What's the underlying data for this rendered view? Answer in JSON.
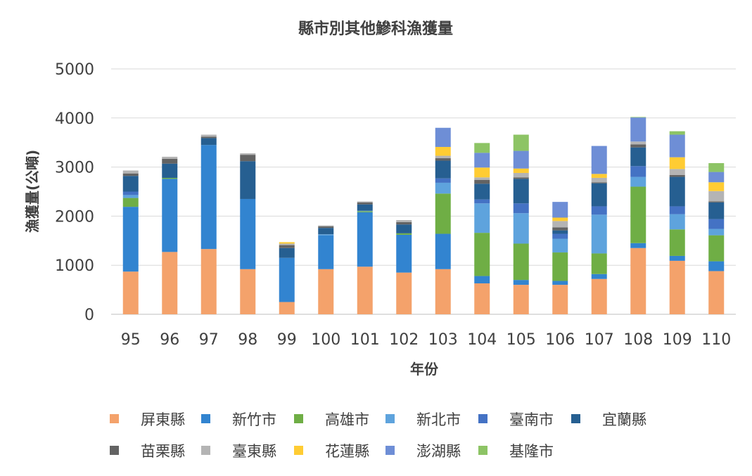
{
  "chart_data": {
    "type": "bar",
    "stacked": true,
    "title": "縣市別其他鰺科漁獲量",
    "xlabel": "年份",
    "ylabel": "漁獲量(公噸)",
    "ylim": [
      0,
      5000
    ],
    "yticks": [
      0,
      1000,
      2000,
      3000,
      4000,
      5000
    ],
    "grid": true,
    "legend_position": "bottom",
    "categories": [
      "95",
      "96",
      "97",
      "98",
      "99",
      "100",
      "101",
      "102",
      "103",
      "104",
      "105",
      "106",
      "107",
      "108",
      "109",
      "110"
    ],
    "series": [
      {
        "name": "屏東縣",
        "color": "#F4A26B",
        "values": [
          870,
          1270,
          1330,
          920,
          250,
          920,
          970,
          850,
          920,
          630,
          600,
          600,
          720,
          1350,
          1090,
          880
        ]
      },
      {
        "name": "新竹市",
        "color": "#3284D0",
        "values": [
          1320,
          1490,
          2120,
          1430,
          900,
          690,
          1110,
          770,
          720,
          150,
          100,
          80,
          100,
          100,
          100,
          200
        ]
      },
      {
        "name": "高雄市",
        "color": "#6FAE45",
        "values": [
          180,
          20,
          0,
          0,
          0,
          0,
          20,
          30,
          820,
          880,
          740,
          580,
          420,
          1150,
          540,
          530
        ]
      },
      {
        "name": "新北市",
        "color": "#5EA3DD",
        "values": [
          60,
          0,
          0,
          0,
          0,
          20,
          10,
          0,
          220,
          600,
          620,
          280,
          790,
          200,
          310,
          130
        ]
      },
      {
        "name": "臺南市",
        "color": "#4472C4",
        "values": [
          70,
          0,
          0,
          0,
          0,
          0,
          0,
          0,
          90,
          80,
          200,
          100,
          170,
          220,
          160,
          200
        ]
      },
      {
        "name": "宜蘭縣",
        "color": "#265F91",
        "values": [
          320,
          290,
          140,
          770,
          200,
          130,
          130,
          180,
          360,
          320,
          500,
          70,
          470,
          380,
          600,
          340
        ]
      },
      {
        "name": "苗栗縣",
        "color": "#636363",
        "values": [
          50,
          100,
          30,
          130,
          60,
          30,
          40,
          50,
          50,
          80,
          30,
          60,
          20,
          60,
          40,
          20
        ]
      },
      {
        "name": "臺東縣",
        "color": "#B4B4B4",
        "values": [
          60,
          40,
          40,
          30,
          30,
          20,
          20,
          40,
          50,
          50,
          90,
          130,
          90,
          60,
          120,
          210
        ]
      },
      {
        "name": "花蓮縣",
        "color": "#FFCC33",
        "values": [
          0,
          0,
          0,
          0,
          30,
          0,
          0,
          0,
          180,
          200,
          90,
          70,
          80,
          0,
          240,
          180
        ]
      },
      {
        "name": "澎湖縣",
        "color": "#6E8ED6",
        "values": [
          0,
          0,
          0,
          0,
          0,
          0,
          0,
          0,
          390,
          300,
          360,
          320,
          570,
          490,
          460,
          210
        ]
      },
      {
        "name": "基隆市",
        "color": "#8DC465",
        "values": [
          0,
          0,
          0,
          0,
          0,
          0,
          0,
          0,
          0,
          200,
          330,
          0,
          0,
          10,
          70,
          180
        ]
      }
    ]
  }
}
